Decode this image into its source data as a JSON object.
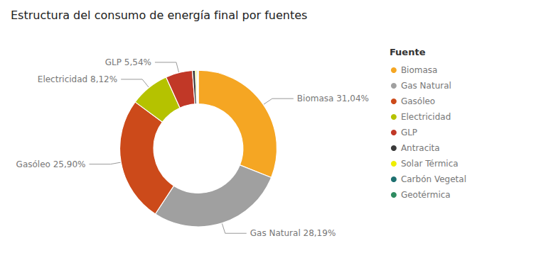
{
  "chart_data": {
    "type": "pie",
    "title": "Estructura del consumo de energía final por fuentes",
    "legend_title": "Fuente",
    "categories": [
      "Biomasa",
      "Gas Natural",
      "Gasóleo",
      "Electricidad",
      "GLP",
      "Antracita",
      "Solar Térmica",
      "Carbón Vegetal",
      "Geotérmica"
    ],
    "values": [
      31.04,
      28.19,
      25.9,
      8.12,
      5.54,
      0.6,
      0.3,
      0.2,
      0.11
    ],
    "colors": [
      "#F5A623",
      "#A0A0A0",
      "#CC4A1A",
      "#B5C200",
      "#C13827",
      "#3A3A3A",
      "#EEEE00",
      "#1E7070",
      "#2E8B60"
    ],
    "data_labels": true,
    "value_labels": [
      "Biomasa 31,04%",
      "Gas Natural 28,19%",
      "Gasóleo 25,90%",
      "Electricidad 8,12%",
      "GLP 5,54%",
      null,
      null,
      null,
      null
    ],
    "legend": "right"
  }
}
